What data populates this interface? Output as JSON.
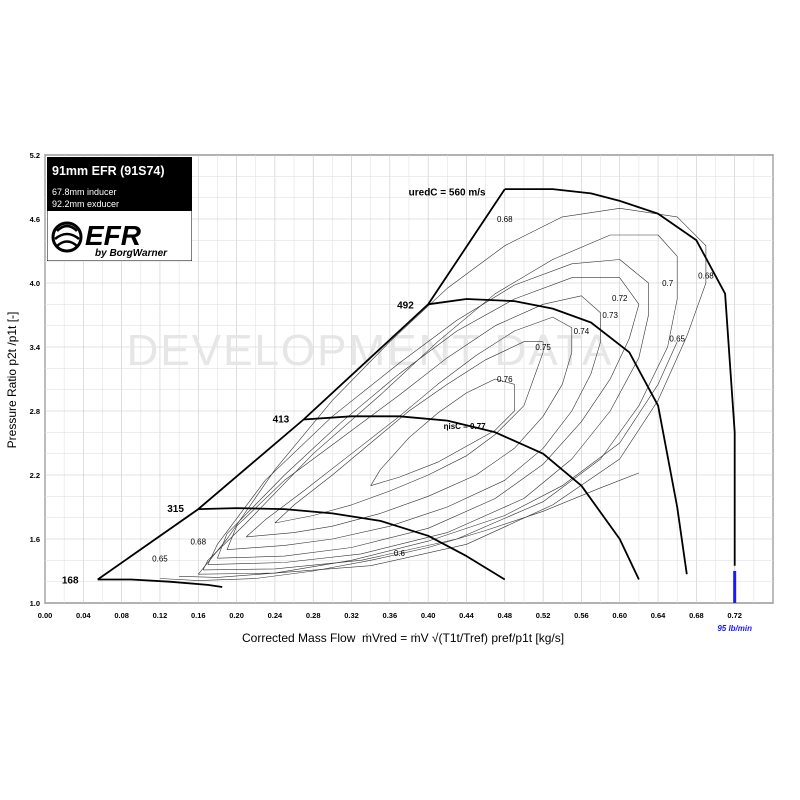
{
  "chart_data": {
    "type": "line",
    "title": "91mm EFR  (91S74)",
    "subtitle_lines": [
      "67.8mm inducer",
      "92.2mm exducer"
    ],
    "brand": {
      "name": "EFR",
      "by": "by BorgWarner"
    },
    "watermark": "DEVELOPMENT DATA",
    "xlabel": "Corrected Mass Flow",
    "xlabel_formula": "ṁVred = ṁV √(T1t/Tref) pref/p1t   [kg/s]",
    "ylabel": "Pressure Ratio   p2t /p1t [-]",
    "xlim": [
      0,
      0.76
    ],
    "ylim": [
      1.0,
      5.2
    ],
    "x_ticks": [
      "0.00",
      "0.04",
      "0.08",
      "0.12",
      "0.16",
      "0.20",
      "0.24",
      "0.28",
      "0.32",
      "0.36",
      "0.40",
      "0.44",
      "0.48",
      "0.52",
      "0.56",
      "0.60",
      "0.64",
      "0.68",
      "0.72"
    ],
    "y_ticks": [
      "1.0",
      "1.6",
      "2.2",
      "2.8",
      "3.4",
      "4.0",
      "4.6",
      "5.2"
    ],
    "grid": true,
    "surge_line": {
      "x": [
        0.055,
        0.16,
        0.27,
        0.4,
        0.48
      ],
      "y": [
        1.22,
        1.88,
        2.72,
        3.8,
        4.88
      ]
    },
    "speed_lines": [
      {
        "label": "168",
        "x": [
          0.055,
          0.09,
          0.13,
          0.17,
          0.185
        ],
        "y": [
          1.22,
          1.22,
          1.2,
          1.17,
          1.15
        ]
      },
      {
        "label": "315",
        "x": [
          0.16,
          0.2,
          0.25,
          0.3,
          0.35,
          0.4,
          0.44,
          0.48
        ],
        "y": [
          1.88,
          1.89,
          1.88,
          1.84,
          1.77,
          1.63,
          1.44,
          1.22
        ]
      },
      {
        "label": "413",
        "x": [
          0.27,
          0.32,
          0.37,
          0.42,
          0.47,
          0.52,
          0.56,
          0.6,
          0.62
        ],
        "y": [
          2.72,
          2.75,
          2.75,
          2.71,
          2.6,
          2.4,
          2.1,
          1.6,
          1.22
        ]
      },
      {
        "label": "492",
        "x": [
          0.4,
          0.44,
          0.49,
          0.53,
          0.57,
          0.61,
          0.64,
          0.66,
          0.67
        ],
        "y": [
          3.8,
          3.85,
          3.83,
          3.76,
          3.63,
          3.35,
          2.85,
          1.9,
          1.27
        ]
      },
      {
        "label": "uredC = 560 m/s",
        "x": [
          0.48,
          0.53,
          0.57,
          0.6,
          0.64,
          0.68,
          0.71,
          0.72,
          0.72
        ],
        "y": [
          4.88,
          4.88,
          4.84,
          4.77,
          4.65,
          4.4,
          3.9,
          2.6,
          1.35
        ]
      }
    ],
    "efficiency_label": "ηisC = 0.77",
    "efficiency_islands": [
      {
        "label": "0.77",
        "x": [
          0.34,
          0.37,
          0.41,
          0.44,
          0.47,
          0.49,
          0.49,
          0.47,
          0.44,
          0.41,
          0.38,
          0.35,
          0.34
        ],
        "y": [
          2.1,
          2.18,
          2.32,
          2.47,
          2.62,
          2.8,
          3.05,
          3.1,
          2.97,
          2.78,
          2.55,
          2.25,
          2.1
        ]
      },
      {
        "label": "0.76",
        "x": [
          0.24,
          0.28,
          0.32,
          0.36,
          0.4,
          0.44,
          0.47,
          0.5,
          0.51,
          0.52,
          0.52,
          0.5,
          0.46,
          0.42,
          0.38,
          0.34,
          0.3,
          0.26,
          0.24
        ],
        "y": [
          1.75,
          1.82,
          1.92,
          2.05,
          2.2,
          2.38,
          2.58,
          2.85,
          3.1,
          3.35,
          3.45,
          3.45,
          3.28,
          3.05,
          2.8,
          2.5,
          2.2,
          1.92,
          1.75
        ]
      },
      {
        "label": "0.75",
        "x": [
          0.21,
          0.26,
          0.3,
          0.35,
          0.4,
          0.45,
          0.49,
          0.52,
          0.54,
          0.55,
          0.55,
          0.53,
          0.49,
          0.45,
          0.41,
          0.37,
          0.32,
          0.27,
          0.23,
          0.21
        ],
        "y": [
          1.62,
          1.66,
          1.72,
          1.84,
          2.0,
          2.2,
          2.45,
          2.75,
          3.05,
          3.35,
          3.58,
          3.68,
          3.55,
          3.32,
          3.05,
          2.75,
          2.4,
          2.05,
          1.78,
          1.62
        ]
      },
      {
        "label": "0.74",
        "x": [
          0.19,
          0.25,
          0.3,
          0.36,
          0.42,
          0.48,
          0.52,
          0.55,
          0.57,
          0.58,
          0.58,
          0.56,
          0.52,
          0.47,
          0.42,
          0.37,
          0.31,
          0.25,
          0.2,
          0.19
        ],
        "y": [
          1.5,
          1.54,
          1.6,
          1.72,
          1.9,
          2.15,
          2.45,
          2.8,
          3.15,
          3.45,
          3.72,
          3.88,
          3.8,
          3.6,
          3.3,
          2.95,
          2.55,
          2.15,
          1.72,
          1.5
        ]
      },
      {
        "label": "0.73",
        "x": [
          0.18,
          0.25,
          0.32,
          0.4,
          0.47,
          0.52,
          0.56,
          0.59,
          0.61,
          0.62,
          0.6,
          0.55,
          0.49,
          0.43,
          0.37,
          0.31,
          0.25,
          0.19,
          0.18
        ],
        "y": [
          1.42,
          1.44,
          1.52,
          1.7,
          1.98,
          2.3,
          2.7,
          3.1,
          3.48,
          3.8,
          4.05,
          4.05,
          3.85,
          3.55,
          3.15,
          2.7,
          2.2,
          1.65,
          1.42
        ]
      },
      {
        "label": "0.72",
        "x": [
          0.17,
          0.25,
          0.33,
          0.42,
          0.5,
          0.55,
          0.59,
          0.62,
          0.63,
          0.63,
          0.6,
          0.55,
          0.49,
          0.43,
          0.37,
          0.3,
          0.23,
          0.18,
          0.17
        ],
        "y": [
          1.36,
          1.38,
          1.46,
          1.66,
          1.98,
          2.35,
          2.8,
          3.3,
          3.7,
          4.0,
          4.22,
          4.18,
          3.98,
          3.65,
          3.25,
          2.75,
          2.15,
          1.55,
          1.36
        ]
      },
      {
        "label": "0.7",
        "x": [
          0.165,
          0.24,
          0.33,
          0.43,
          0.52,
          0.58,
          0.62,
          0.65,
          0.66,
          0.66,
          0.64,
          0.59,
          0.53,
          0.47,
          0.41,
          0.35,
          0.28,
          0.21,
          0.17,
          0.165
        ],
        "y": [
          1.31,
          1.32,
          1.4,
          1.6,
          1.95,
          2.35,
          2.85,
          3.4,
          3.85,
          4.25,
          4.45,
          4.45,
          4.22,
          3.9,
          3.45,
          2.95,
          2.4,
          1.75,
          1.4,
          1.31
        ]
      },
      {
        "label": "0.68",
        "x": [
          0.16,
          0.24,
          0.34,
          0.44,
          0.53,
          0.6,
          0.64,
          0.67,
          0.69,
          0.69,
          0.66,
          0.6,
          0.54,
          0.48,
          0.42,
          0.36,
          0.3,
          0.24,
          0.19,
          0.16
        ],
        "y": [
          1.27,
          1.28,
          1.35,
          1.55,
          1.92,
          2.35,
          2.9,
          3.5,
          4.0,
          4.35,
          4.62,
          4.7,
          4.62,
          4.35,
          3.95,
          3.45,
          2.9,
          2.25,
          1.6,
          1.27
        ]
      },
      {
        "label": "0.65",
        "x": [
          0.14,
          0.18,
          0.24,
          0.32,
          0.4,
          0.48,
          0.54,
          0.6,
          0.64,
          0.66
        ],
        "y": [
          1.25,
          1.24,
          1.28,
          1.4,
          1.58,
          1.82,
          2.1,
          2.5,
          3.05,
          3.45
        ]
      },
      {
        "label": "0.6",
        "x": [
          0.12,
          0.16,
          0.22,
          0.28,
          0.34,
          0.4,
          0.46,
          0.52,
          0.58,
          0.62
        ],
        "y": [
          1.23,
          1.21,
          1.23,
          1.3,
          1.4,
          1.52,
          1.68,
          1.86,
          2.08,
          2.22
        ]
      }
    ],
    "efficiency_text_labels": [
      {
        "text": "0.68",
        "x": 0.48,
        "y": 4.57
      },
      {
        "text": "0.7",
        "x": 0.65,
        "y": 3.97
      },
      {
        "text": "0.68",
        "x": 0.69,
        "y": 4.04
      },
      {
        "text": "0.72",
        "x": 0.6,
        "y": 3.83
      },
      {
        "text": "0.73",
        "x": 0.59,
        "y": 3.67
      },
      {
        "text": "0.74",
        "x": 0.56,
        "y": 3.52
      },
      {
        "text": "0.75",
        "x": 0.52,
        "y": 3.37
      },
      {
        "text": "0.65",
        "x": 0.66,
        "y": 3.45
      },
      {
        "text": "0.76",
        "x": 0.48,
        "y": 3.07
      },
      {
        "text": "0.68",
        "x": 0.16,
        "y": 1.55
      },
      {
        "text": "0.65",
        "x": 0.12,
        "y": 1.39
      },
      {
        "text": "0.6",
        "x": 0.37,
        "y": 1.44
      }
    ],
    "speed_label_positions": [
      {
        "text": "168",
        "x": 0.035,
        "y": 1.22
      },
      {
        "text": "315",
        "x": 0.145,
        "y": 1.89
      },
      {
        "text": "413",
        "x": 0.255,
        "y": 2.73
      },
      {
        "text": "492",
        "x": 0.385,
        "y": 3.8
      }
    ],
    "marker": {
      "x": 0.72,
      "label": "95 lb/min",
      "color": "#1a1aff"
    }
  }
}
